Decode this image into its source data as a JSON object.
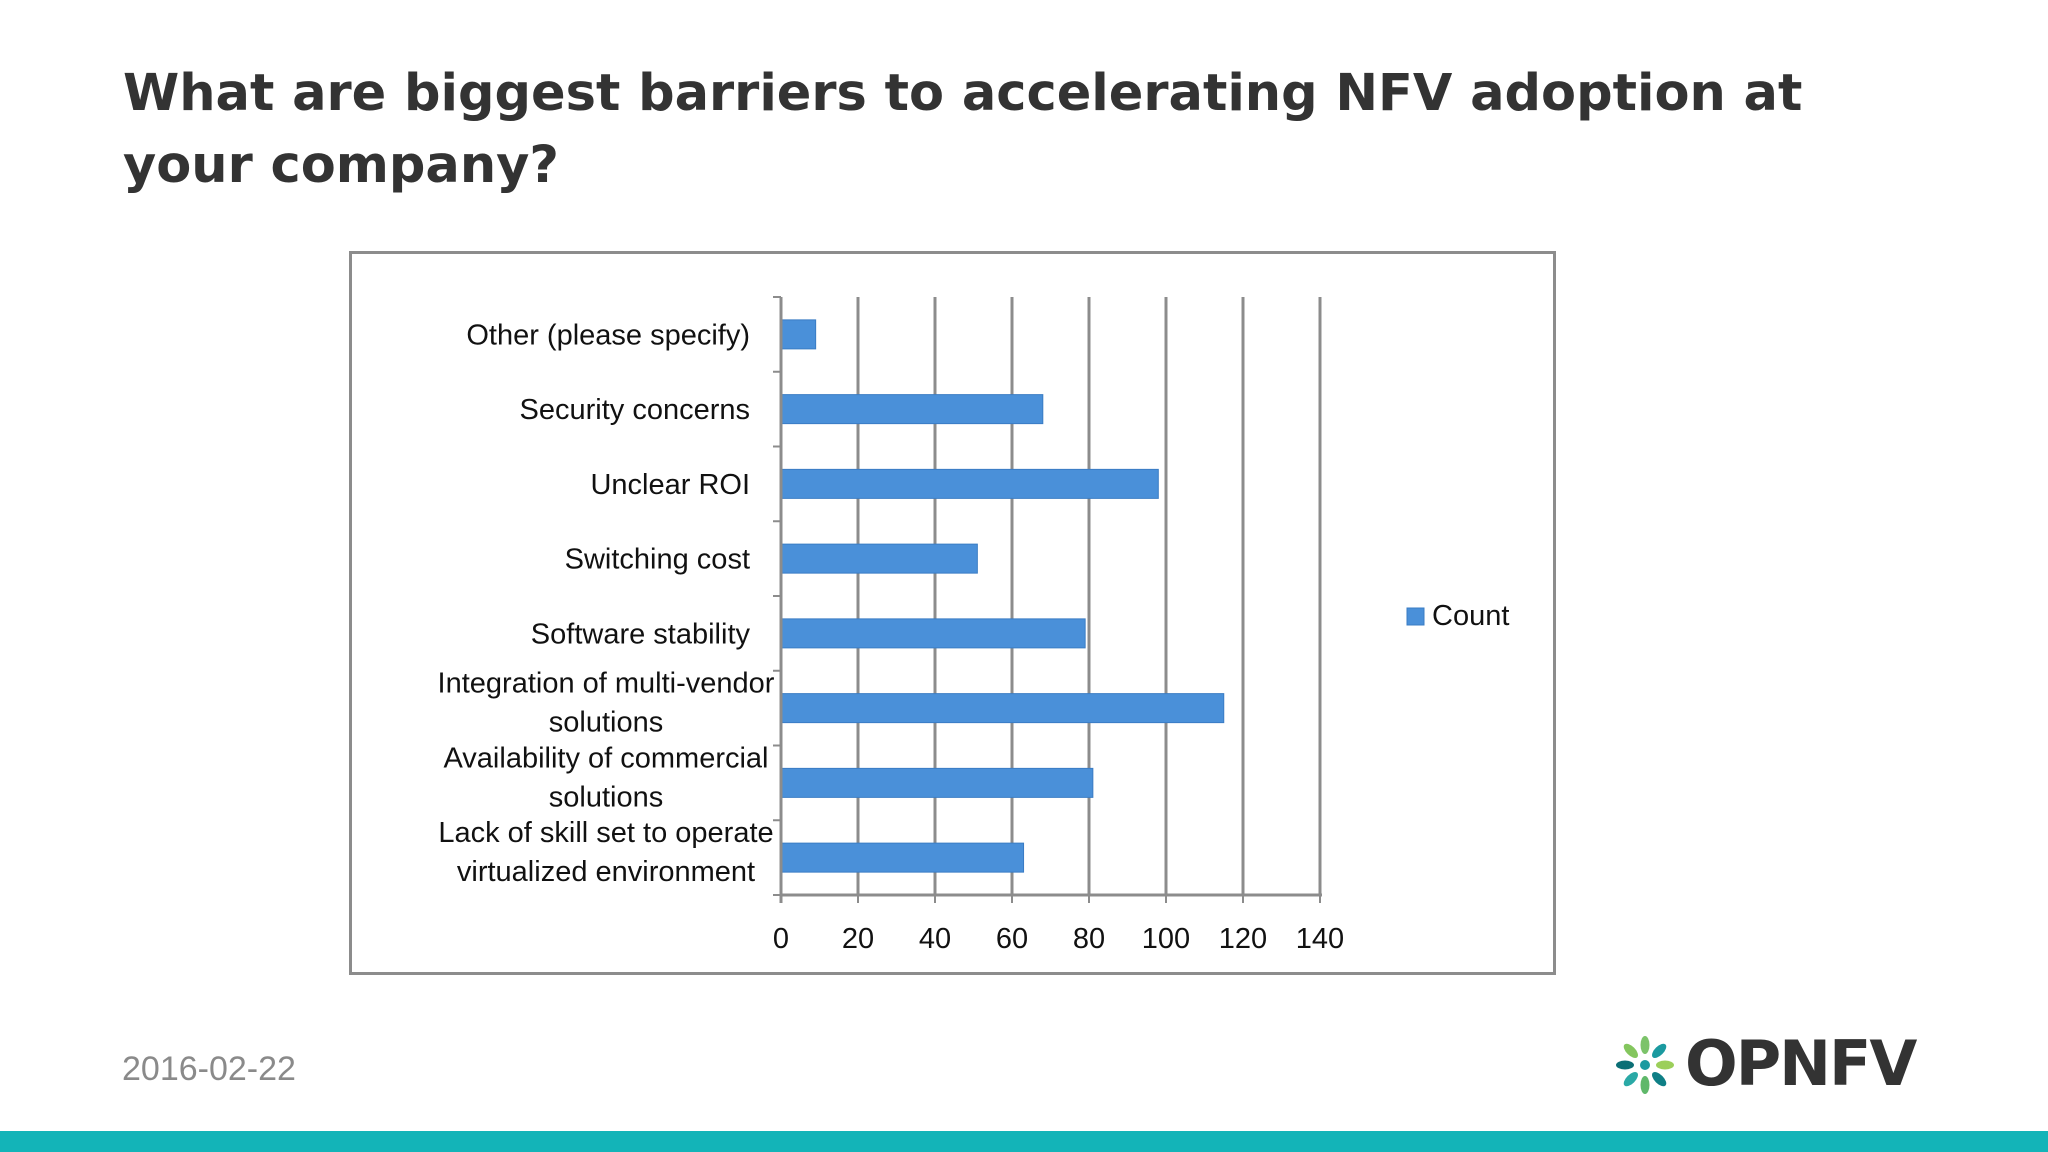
{
  "slide": {
    "title": "What are biggest barriers to accelerating NFV adoption at your company?",
    "date": "2016-02-22",
    "logo_text": "OPNFV"
  },
  "colors": {
    "bar": "#4a90d9",
    "bar_edge": "#3a7cc4",
    "axis": "#8c8c8c",
    "text": "#111111",
    "footer": "#13b4b8"
  },
  "chart_data": {
    "type": "bar",
    "orientation": "horizontal",
    "categories": [
      "Other (please specify)",
      "Security concerns",
      "Unclear ROI",
      "Switching cost",
      "Software stability",
      "Integration of multi-vendor solutions",
      "Availability of commercial solutions",
      "Lack of skill set to operate virtualized environment"
    ],
    "category_lines": [
      [
        "Other (please specify)"
      ],
      [
        "Security concerns"
      ],
      [
        "Unclear ROI"
      ],
      [
        "Switching cost"
      ],
      [
        "Software stability"
      ],
      [
        "Integration of multi-vendor",
        "solutions"
      ],
      [
        "Availability of commercial",
        "solutions"
      ],
      [
        "Lack of skill set to operate",
        "virtualized environment"
      ]
    ],
    "series": [
      {
        "name": "Count",
        "values": [
          9,
          68,
          98,
          51,
          79,
          115,
          81,
          63
        ]
      }
    ],
    "xlim": [
      0,
      140
    ],
    "xticks": [
      0,
      20,
      40,
      60,
      80,
      100,
      120,
      140
    ],
    "xgrid": true,
    "legend": "right"
  }
}
